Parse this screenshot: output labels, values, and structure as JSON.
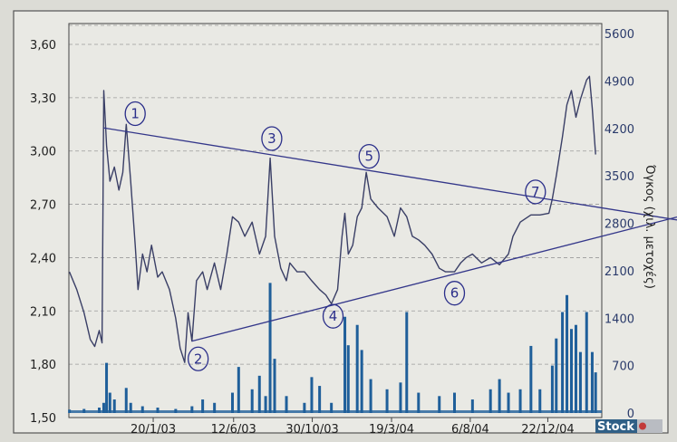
{
  "chart_data": {
    "type": "line",
    "title": "",
    "xlabel": "",
    "ylabel": "",
    "y2label": "Όγκος (χιλ. μετοχές)",
    "xlim": [
      "2002-08-23",
      "2005-03-28"
    ],
    "ylim": [
      1.5,
      3.6
    ],
    "y2lim": [
      0,
      5600
    ],
    "grid": true,
    "legend": "none",
    "x_ticks": [
      {
        "date": "2003-01-20",
        "label": "20/1/03"
      },
      {
        "date": "2003-06-12",
        "label": "12/6/03"
      },
      {
        "date": "2003-10-30",
        "label": "30/10/03"
      },
      {
        "date": "2004-03-19",
        "label": "19/3/04"
      },
      {
        "date": "2004-08-06",
        "label": "6/8/04"
      },
      {
        "date": "2004-12-22",
        "label": "22/12/04"
      }
    ],
    "y_ticks": [
      "3,60",
      "3,30",
      "3,00",
      "2,70",
      "2,40",
      "2,10",
      "1,80",
      "1,50"
    ],
    "y_tick_values": [
      3.6,
      3.3,
      3.0,
      2.7,
      2.4,
      2.1,
      1.8,
      1.5
    ],
    "y2_ticks": [
      "5600",
      "4900",
      "4200",
      "3500",
      "2800",
      "2100",
      "1400",
      "700",
      "0"
    ],
    "y2_tick_values": [
      5600,
      4900,
      4200,
      3500,
      2800,
      2100,
      1400,
      700,
      0
    ],
    "colors": {
      "price": "#3a3f66",
      "volume": "#1f5f9a",
      "trendline": "#34378a",
      "annotation": "#2b2f8a",
      "grid": "#9a9a9a"
    },
    "series": [
      {
        "kind": "price",
        "points": [
          [
            "2002-08-24",
            2.32
          ],
          [
            "2002-09-06",
            2.22
          ],
          [
            "2002-09-19",
            2.09
          ],
          [
            "2002-09-30",
            1.94
          ],
          [
            "2002-10-08",
            1.9
          ],
          [
            "2002-10-16",
            1.99
          ],
          [
            "2002-10-21",
            1.92
          ],
          [
            "2002-10-24",
            3.34
          ],
          [
            "2002-10-29",
            3.03
          ],
          [
            "2002-11-04",
            2.83
          ],
          [
            "2002-11-12",
            2.91
          ],
          [
            "2002-11-20",
            2.78
          ],
          [
            "2002-11-27",
            2.88
          ],
          [
            "2002-12-03",
            3.15
          ],
          [
            "2002-12-11",
            2.83
          ],
          [
            "2002-12-19",
            2.47
          ],
          [
            "2002-12-24",
            2.22
          ],
          [
            "2003-01-01",
            2.42
          ],
          [
            "2003-01-09",
            2.32
          ],
          [
            "2003-01-17",
            2.47
          ],
          [
            "2003-01-28",
            2.29
          ],
          [
            "2003-02-05",
            2.32
          ],
          [
            "2003-02-18",
            2.22
          ],
          [
            "2003-03-01",
            2.06
          ],
          [
            "2003-03-09",
            1.89
          ],
          [
            "2003-03-17",
            1.81
          ],
          [
            "2003-03-23",
            2.09
          ],
          [
            "2003-03-30",
            1.93
          ],
          [
            "2003-04-07",
            2.27
          ],
          [
            "2003-04-18",
            2.32
          ],
          [
            "2003-04-26",
            2.22
          ],
          [
            "2003-05-09",
            2.37
          ],
          [
            "2003-05-20",
            2.22
          ],
          [
            "2003-05-31",
            2.42
          ],
          [
            "2003-06-10",
            2.63
          ],
          [
            "2003-06-21",
            2.6
          ],
          [
            "2003-07-02",
            2.52
          ],
          [
            "2003-07-15",
            2.6
          ],
          [
            "2003-07-28",
            2.42
          ],
          [
            "2003-08-08",
            2.52
          ],
          [
            "2003-08-16",
            2.96
          ],
          [
            "2003-08-24",
            2.52
          ],
          [
            "2003-09-04",
            2.34
          ],
          [
            "2003-09-14",
            2.27
          ],
          [
            "2003-09-20",
            2.37
          ],
          [
            "2003-10-03",
            2.32
          ],
          [
            "2003-10-16",
            2.32
          ],
          [
            "2003-10-29",
            2.27
          ],
          [
            "2003-11-12",
            2.22
          ],
          [
            "2003-11-23",
            2.19
          ],
          [
            "2003-12-03",
            2.14
          ],
          [
            "2003-12-14",
            2.22
          ],
          [
            "2003-12-22",
            2.52
          ],
          [
            "2003-12-27",
            2.65
          ],
          [
            "2004-01-02",
            2.42
          ],
          [
            "2004-01-10",
            2.47
          ],
          [
            "2004-01-18",
            2.63
          ],
          [
            "2004-01-26",
            2.68
          ],
          [
            "2004-02-03",
            2.88
          ],
          [
            "2004-02-11",
            2.73
          ],
          [
            "2004-02-24",
            2.68
          ],
          [
            "2004-03-11",
            2.63
          ],
          [
            "2004-03-24",
            2.52
          ],
          [
            "2004-04-04",
            2.68
          ],
          [
            "2004-04-15",
            2.63
          ],
          [
            "2004-04-25",
            2.52
          ],
          [
            "2004-05-06",
            2.5
          ],
          [
            "2004-05-17",
            2.47
          ],
          [
            "2004-05-30",
            2.42
          ],
          [
            "2004-06-12",
            2.34
          ],
          [
            "2004-06-23",
            2.32
          ],
          [
            "2004-07-09",
            2.32
          ],
          [
            "2004-07-20",
            2.37
          ],
          [
            "2004-07-30",
            2.4
          ],
          [
            "2004-08-10",
            2.42
          ],
          [
            "2004-08-26",
            2.37
          ],
          [
            "2004-09-11",
            2.4
          ],
          [
            "2004-09-27",
            2.36
          ],
          [
            "2004-10-13",
            2.42
          ],
          [
            "2004-10-21",
            2.52
          ],
          [
            "2004-11-03",
            2.6
          ],
          [
            "2004-11-22",
            2.64
          ],
          [
            "2004-12-08",
            2.64
          ],
          [
            "2004-12-24",
            2.65
          ],
          [
            "2004-12-30",
            2.73
          ],
          [
            "2005-01-06",
            2.86
          ],
          [
            "2005-01-17",
            3.08
          ],
          [
            "2005-01-25",
            3.26
          ],
          [
            "2005-02-02",
            3.34
          ],
          [
            "2005-02-10",
            3.19
          ],
          [
            "2005-02-18",
            3.29
          ],
          [
            "2005-03-01",
            3.4
          ],
          [
            "2005-03-06",
            3.42
          ],
          [
            "2005-03-11",
            3.24
          ],
          [
            "2005-03-17",
            2.98
          ]
        ]
      },
      {
        "kind": "volume",
        "points": [
          [
            "2002-08-24",
            50
          ],
          [
            "2002-09-19",
            60
          ],
          [
            "2002-10-16",
            80
          ],
          [
            "2002-10-24",
            150
          ],
          [
            "2002-10-29",
            740
          ],
          [
            "2002-11-04",
            300
          ],
          [
            "2002-11-12",
            200
          ],
          [
            "2002-12-03",
            370
          ],
          [
            "2002-12-11",
            150
          ],
          [
            "2003-01-01",
            100
          ],
          [
            "2003-01-28",
            80
          ],
          [
            "2003-03-01",
            60
          ],
          [
            "2003-03-30",
            100
          ],
          [
            "2003-04-18",
            200
          ],
          [
            "2003-05-09",
            150
          ],
          [
            "2003-06-10",
            300
          ],
          [
            "2003-06-21",
            680
          ],
          [
            "2003-07-15",
            350
          ],
          [
            "2003-07-28",
            550
          ],
          [
            "2003-08-08",
            250
          ],
          [
            "2003-08-16",
            1920
          ],
          [
            "2003-08-24",
            800
          ],
          [
            "2003-09-14",
            250
          ],
          [
            "2003-10-16",
            150
          ],
          [
            "2003-10-29",
            530
          ],
          [
            "2003-11-12",
            400
          ],
          [
            "2003-12-03",
            150
          ],
          [
            "2003-12-27",
            1420
          ],
          [
            "2004-01-02",
            1000
          ],
          [
            "2004-01-18",
            1300
          ],
          [
            "2004-01-26",
            930
          ],
          [
            "2004-02-11",
            500
          ],
          [
            "2004-03-11",
            350
          ],
          [
            "2004-04-04",
            450
          ],
          [
            "2004-04-15",
            1490
          ],
          [
            "2004-05-06",
            300
          ],
          [
            "2004-06-12",
            250
          ],
          [
            "2004-07-09",
            300
          ],
          [
            "2004-08-10",
            200
          ],
          [
            "2004-09-11",
            350
          ],
          [
            "2004-09-27",
            500
          ],
          [
            "2004-10-13",
            300
          ],
          [
            "2004-11-03",
            350
          ],
          [
            "2004-11-22",
            990
          ],
          [
            "2004-12-08",
            350
          ],
          [
            "2004-12-30",
            700
          ],
          [
            "2005-01-06",
            1100
          ],
          [
            "2005-01-17",
            1490
          ],
          [
            "2005-01-25",
            1740
          ],
          [
            "2005-02-02",
            1240
          ],
          [
            "2005-02-10",
            1300
          ],
          [
            "2005-02-18",
            900
          ],
          [
            "2005-03-01",
            1490
          ],
          [
            "2005-03-11",
            900
          ],
          [
            "2005-03-17",
            600
          ]
        ]
      }
    ],
    "trendlines": [
      {
        "from": [
          "2002-10-24",
          3.13
        ],
        "to": [
          "2005-03-28",
          2.68
        ]
      },
      {
        "from": [
          "2003-03-30",
          1.93
        ],
        "to": [
          "2005-03-28",
          2.52
        ]
      }
    ],
    "annotations": [
      {
        "label": "1",
        "date": "2002-12-19",
        "value": 3.21
      },
      {
        "label": "2",
        "date": "2003-04-10",
        "value": 1.83
      },
      {
        "label": "3",
        "date": "2003-08-19",
        "value": 3.07
      },
      {
        "label": "4",
        "date": "2003-12-06",
        "value": 2.07
      },
      {
        "label": "5",
        "date": "2004-02-08",
        "value": 2.97
      },
      {
        "label": "6",
        "date": "2004-07-09",
        "value": 2.2
      },
      {
        "label": "7",
        "date": "2004-11-30",
        "value": 2.77
      }
    ]
  },
  "logo": {
    "text": "Stock"
  }
}
